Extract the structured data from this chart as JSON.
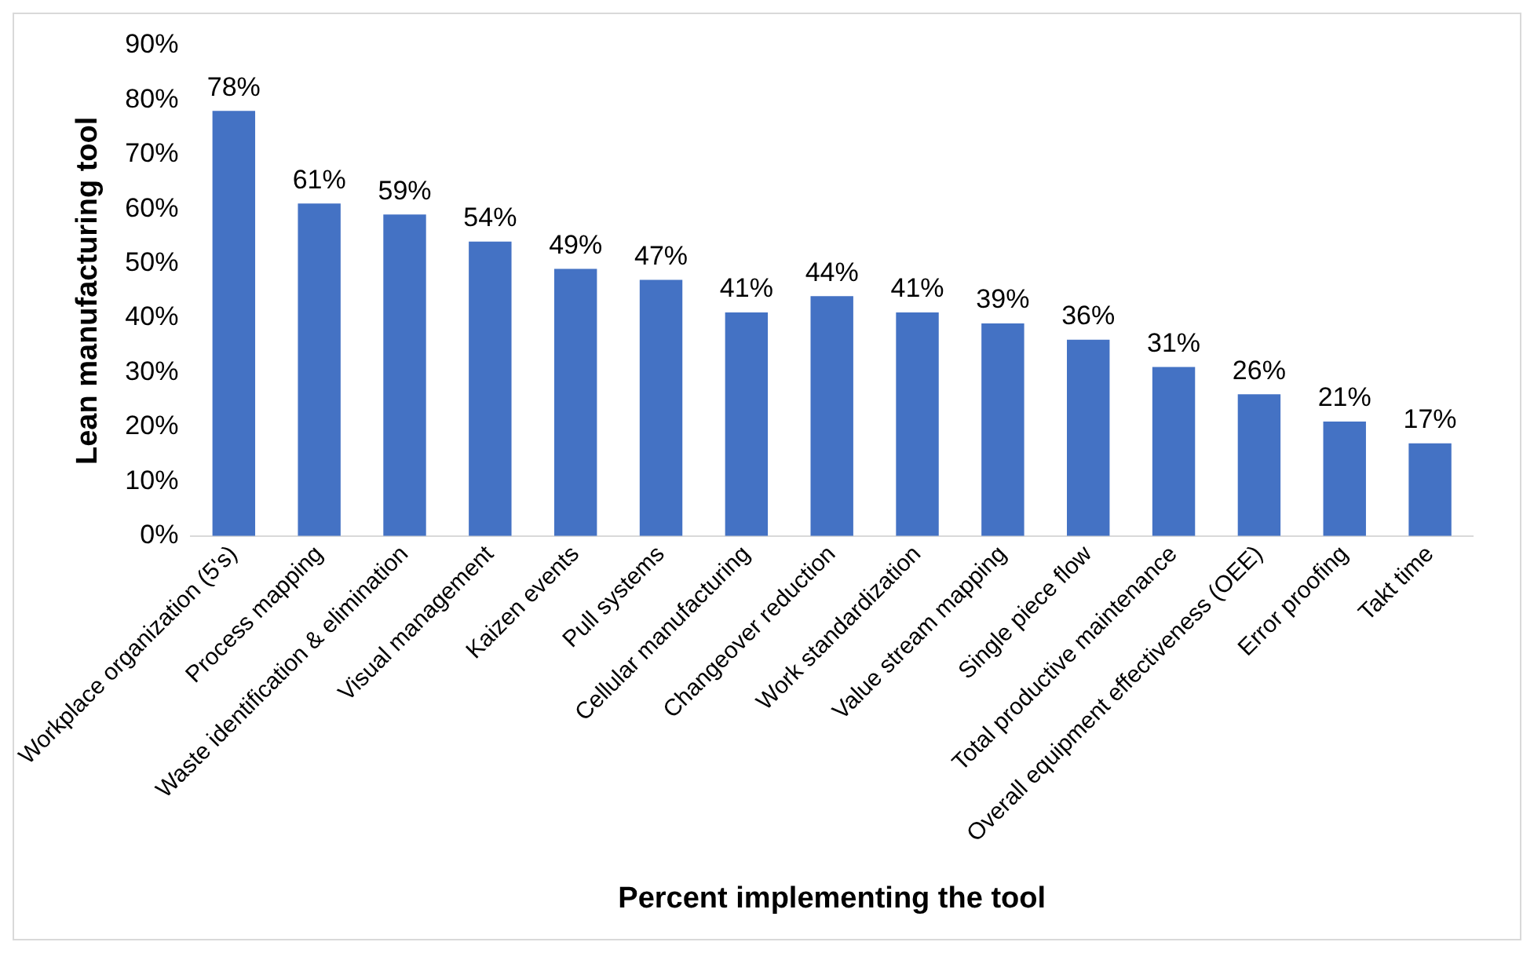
{
  "chart_data": {
    "type": "bar",
    "xlabel": "Percent implementing the tool",
    "ylabel": "Lean manufacturing tool",
    "categories": [
      "Workplace organization (5's)",
      "Process mapping",
      "Waste identification & elimination",
      "Visual management",
      "Kaizen events",
      "Pull systems",
      "Cellular manufacturing",
      "Changeover reduction",
      "Work standardization",
      "Value stream mapping",
      "Single piece flow",
      "Total productive maintenance",
      "Overall equipment effectiveness (OEE)",
      "Error proofing",
      "Takt time"
    ],
    "values": [
      78,
      61,
      59,
      54,
      49,
      47,
      41,
      44,
      41,
      39,
      36,
      31,
      26,
      21,
      17
    ],
    "value_labels": [
      "78%",
      "61%",
      "59%",
      "54%",
      "49%",
      "47%",
      "41%",
      "44%",
      "41%",
      "39%",
      "36%",
      "31%",
      "26%",
      "21%",
      "17%"
    ],
    "color": "#4472c4",
    "ylim": [
      0,
      90
    ],
    "yticks": [
      {
        "value": 0,
        "label": "0%"
      },
      {
        "value": 10,
        "label": "10%"
      },
      {
        "value": 20,
        "label": "20%"
      },
      {
        "value": 30,
        "label": "30%"
      },
      {
        "value": 40,
        "label": "40%"
      },
      {
        "value": 50,
        "label": "50%"
      },
      {
        "value": 60,
        "label": "60%"
      },
      {
        "value": 70,
        "label": "70%"
      },
      {
        "value": 80,
        "label": "80%"
      },
      {
        "value": 90,
        "label": "90%"
      }
    ],
    "grid": false,
    "legend": false
  }
}
